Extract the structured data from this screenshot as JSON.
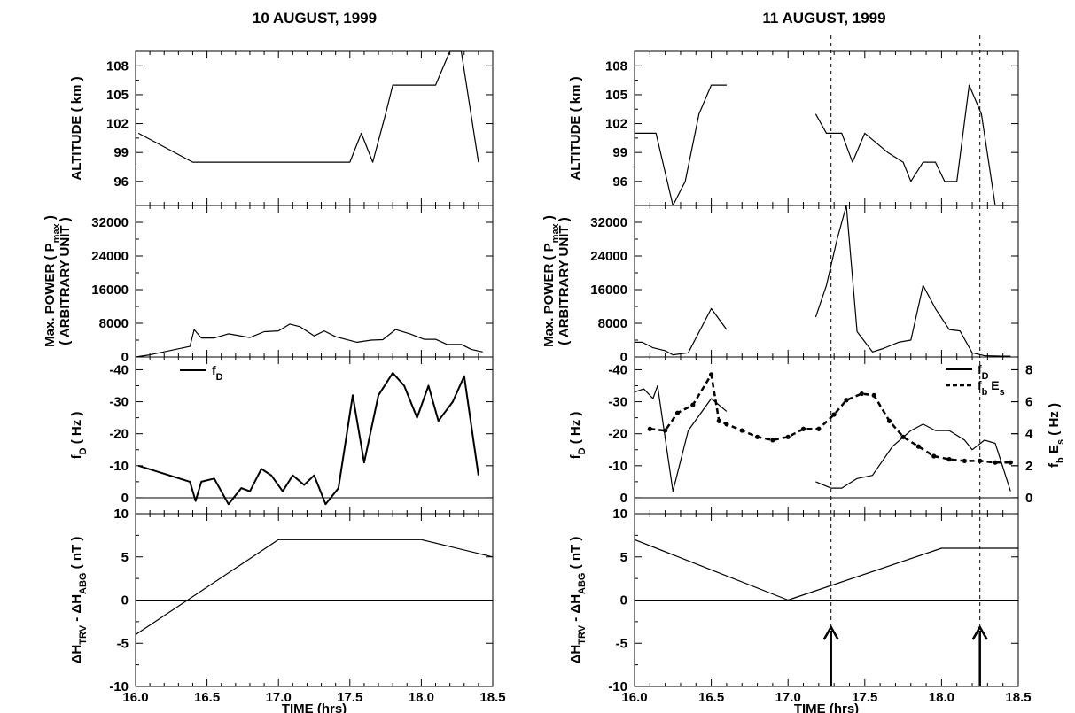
{
  "chart_data": [
    {
      "type": "line",
      "title": "10 AUGUST, 1999",
      "xlabel": "TIME (hrs)",
      "xlim": [
        16.0,
        18.5
      ],
      "xticks": [
        "16.0",
        "16.5",
        "17.0",
        "17.5",
        "18.0",
        "18.5"
      ],
      "panels": [
        {
          "id": "altitude",
          "ylabel": "ALTITUDE ( km )",
          "ylim": [
            93.5,
            109.5
          ],
          "yticks": [
            "96",
            "99",
            "102",
            "105",
            "108"
          ],
          "series": [
            {
              "style": "solid",
              "points": [
                [
                  16.02,
                  101
                ],
                [
                  16.4,
                  98
                ],
                [
                  16.6,
                  98
                ],
                [
                  17.0,
                  98
                ],
                [
                  17.5,
                  98
                ],
                [
                  17.58,
                  101
                ],
                [
                  17.66,
                  98
                ],
                [
                  17.75,
                  103
                ],
                [
                  17.8,
                  106
                ],
                [
                  18.1,
                  106
                ],
                [
                  18.2,
                  109.5
                ],
                [
                  18.28,
                  109.5
                ],
                [
                  18.4,
                  98
                ]
              ]
            }
          ]
        },
        {
          "id": "power",
          "ylabel": "Max. POWER ( P_max )",
          "ylabel2": "( ARBITRARY UNIT )",
          "ylabel_sub": "max",
          "ylim": [
            0,
            36000
          ],
          "yticks": [
            "0",
            "8000",
            "16000",
            "24000",
            "32000"
          ],
          "series": [
            {
              "style": "solid",
              "points": [
                [
                  16.0,
                  0
                ],
                [
                  16.1,
                  500
                ],
                [
                  16.38,
                  2500
                ],
                [
                  16.41,
                  6500
                ],
                [
                  16.46,
                  4500
                ],
                [
                  16.55,
                  4500
                ],
                [
                  16.65,
                  5500
                ],
                [
                  16.8,
                  4600
                ],
                [
                  16.9,
                  6000
                ],
                [
                  17.0,
                  6200
                ],
                [
                  17.08,
                  7800
                ],
                [
                  17.15,
                  7200
                ],
                [
                  17.25,
                  5000
                ],
                [
                  17.32,
                  6200
                ],
                [
                  17.4,
                  4800
                ],
                [
                  17.55,
                  3500
                ],
                [
                  17.65,
                  4000
                ],
                [
                  17.73,
                  4100
                ],
                [
                  17.82,
                  6500
                ],
                [
                  17.92,
                  5500
                ],
                [
                  18.02,
                  4200
                ],
                [
                  18.1,
                  4200
                ],
                [
                  18.18,
                  3000
                ],
                [
                  18.28,
                  3000
                ],
                [
                  18.35,
                  1800
                ],
                [
                  18.43,
                  1200
                ]
              ]
            }
          ]
        },
        {
          "id": "doppler",
          "ylabel": "f_D ( Hz )",
          "ylim": [
            5,
            -44
          ],
          "yticks": [
            "0",
            "-10",
            "-20",
            "-30",
            "-40"
          ],
          "legend": [
            {
              "label": "f_D",
              "style": "solid"
            }
          ],
          "series": [
            {
              "name": "f_D",
              "style": "thick",
              "points": [
                [
                  16.02,
                  -10
                ],
                [
                  16.38,
                  -5
                ],
                [
                  16.42,
                  1
                ],
                [
                  16.46,
                  -5
                ],
                [
                  16.55,
                  -6
                ],
                [
                  16.65,
                  2
                ],
                [
                  16.74,
                  -3
                ],
                [
                  16.8,
                  -2
                ],
                [
                  16.88,
                  -9
                ],
                [
                  16.95,
                  -7
                ],
                [
                  17.03,
                  -2
                ],
                [
                  17.1,
                  -7
                ],
                [
                  17.18,
                  -4
                ],
                [
                  17.25,
                  -7
                ],
                [
                  17.33,
                  2
                ],
                [
                  17.42,
                  -3
                ],
                [
                  17.52,
                  -32
                ],
                [
                  17.6,
                  -11
                ],
                [
                  17.7,
                  -32
                ],
                [
                  17.8,
                  -39
                ],
                [
                  17.88,
                  -35
                ],
                [
                  17.97,
                  -25
                ],
                [
                  18.05,
                  -35
                ],
                [
                  18.12,
                  -24
                ],
                [
                  18.22,
                  -30
                ],
                [
                  18.3,
                  -38
                ],
                [
                  18.4,
                  -7
                ]
              ]
            }
          ]
        },
        {
          "id": "deltaH",
          "ylabel": "ΔH_TRV - ΔH_ABG ( nT )",
          "ylim": [
            -10,
            10
          ],
          "yticks": [
            "-10",
            "-5",
            "0",
            "5",
            "10"
          ],
          "series": [
            {
              "style": "solid",
              "points": [
                [
                  16.0,
                  -4
                ],
                [
                  17.0,
                  7
                ],
                [
                  18.0,
                  7
                ],
                [
                  18.5,
                  5
                ]
              ]
            }
          ]
        }
      ]
    },
    {
      "type": "line",
      "title": "11 AUGUST, 1999",
      "xlabel": "TIME (hrs)",
      "xlim": [
        16.0,
        18.5
      ],
      "xticks": [
        "16.0",
        "16.5",
        "17.0",
        "17.5",
        "18.0",
        "18.5"
      ],
      "vlines": [
        17.28,
        18.25
      ],
      "arrows": [
        17.28,
        18.25
      ],
      "panels": [
        {
          "id": "altitude",
          "ylabel": "ALTITUDE ( km )",
          "ylim": [
            93.5,
            109.5
          ],
          "yticks": [
            "96",
            "99",
            "102",
            "105",
            "108"
          ],
          "series": [
            {
              "style": "solid",
              "points": [
                [
                  16.0,
                  101
                ],
                [
                  16.14,
                  101
                ],
                [
                  16.25,
                  93.2
                ],
                [
                  16.33,
                  96
                ],
                [
                  16.42,
                  103
                ],
                [
                  16.5,
                  106
                ],
                [
                  16.6,
                  106
                ]
              ]
            },
            {
              "style": "solid",
              "points": [
                [
                  17.18,
                  103
                ],
                [
                  17.25,
                  101
                ],
                [
                  17.35,
                  101
                ],
                [
                  17.42,
                  98
                ],
                [
                  17.5,
                  101
                ],
                [
                  17.65,
                  99
                ],
                [
                  17.75,
                  98
                ],
                [
                  17.8,
                  96
                ],
                [
                  17.88,
                  98
                ],
                [
                  17.96,
                  98
                ],
                [
                  18.02,
                  96
                ],
                [
                  18.1,
                  96
                ],
                [
                  18.18,
                  106
                ],
                [
                  18.26,
                  103
                ],
                [
                  18.35,
                  93.2
                ],
                [
                  18.45,
                  93.2
                ]
              ]
            }
          ]
        },
        {
          "id": "power",
          "ylabel": "Max. POWER ( P_max )",
          "ylabel2": "( ARBITRARY UNIT )",
          "ylabel_sub": "max",
          "ylim": [
            0,
            36000
          ],
          "yticks": [
            "0",
            "8000",
            "16000",
            "24000",
            "32000"
          ],
          "series": [
            {
              "style": "solid",
              "points": [
                [
                  16.0,
                  3500
                ],
                [
                  16.05,
                  3500
                ],
                [
                  16.12,
                  2200
                ],
                [
                  16.2,
                  1500
                ],
                [
                  16.25,
                  500
                ],
                [
                  16.35,
                  1000
                ],
                [
                  16.5,
                  11500
                ],
                [
                  16.6,
                  6500
                ]
              ]
            },
            {
              "style": "solid",
              "points": [
                [
                  17.18,
                  9500
                ],
                [
                  17.25,
                  17000
                ],
                [
                  17.32,
                  28000
                ],
                [
                  17.38,
                  36000
                ],
                [
                  17.45,
                  6000
                ],
                [
                  17.55,
                  1200
                ],
                [
                  17.62,
                  2000
                ],
                [
                  17.72,
                  3500
                ],
                [
                  17.8,
                  4000
                ],
                [
                  17.88,
                  17000
                ],
                [
                  17.96,
                  11500
                ],
                [
                  18.05,
                  6500
                ],
                [
                  18.12,
                  6200
                ],
                [
                  18.2,
                  1000
                ],
                [
                  18.28,
                  300
                ],
                [
                  18.4,
                  200
                ],
                [
                  18.45,
                  200
                ]
              ]
            }
          ]
        },
        {
          "id": "doppler",
          "ylabel": "f_D ( Hz )",
          "ylim": [
            5,
            -44
          ],
          "yticks": [
            "0",
            "-10",
            "-20",
            "-30",
            "-40"
          ],
          "ylabel_right": "f_b E_s ( Hz )",
          "ylim_right": [
            -1,
            8.8
          ],
          "yticks_right": [
            "0",
            "2",
            "4",
            "6",
            "8"
          ],
          "legend": [
            {
              "label": "f_D",
              "style": "solid"
            },
            {
              "label": "f_b E_s",
              "style": "dashed"
            }
          ],
          "series": [
            {
              "name": "f_D",
              "style": "solid",
              "points": [
                [
                  16.0,
                  -33
                ],
                [
                  16.06,
                  -34
                ],
                [
                  16.12,
                  -31
                ],
                [
                  16.15,
                  -35
                ],
                [
                  16.25,
                  -2
                ],
                [
                  16.35,
                  -21
                ],
                [
                  16.5,
                  -31
                ],
                [
                  16.6,
                  -27
                ]
              ]
            },
            {
              "name": "f_D",
              "style": "solid",
              "points": [
                [
                  17.18,
                  -5
                ],
                [
                  17.28,
                  -3
                ],
                [
                  17.35,
                  -3
                ],
                [
                  17.45,
                  -6
                ],
                [
                  17.55,
                  -7
                ],
                [
                  17.68,
                  -16
                ],
                [
                  17.8,
                  -21
                ],
                [
                  17.88,
                  -23
                ],
                [
                  17.96,
                  -21
                ],
                [
                  18.05,
                  -21
                ],
                [
                  18.15,
                  -18
                ],
                [
                  18.2,
                  -15
                ],
                [
                  18.28,
                  -18
                ],
                [
                  18.35,
                  -17
                ],
                [
                  18.45,
                  -2
                ]
              ]
            },
            {
              "name": "f_b E_s",
              "style": "dashed",
              "axis": "right",
              "points": [
                [
                  16.1,
                  4.3
                ],
                [
                  16.2,
                  4.2
                ],
                [
                  16.28,
                  5.3
                ],
                [
                  16.38,
                  5.8
                ],
                [
                  16.5,
                  7.7
                ],
                [
                  16.55,
                  4.8
                ],
                [
                  16.6,
                  4.6
                ],
                [
                  16.7,
                  4.2
                ],
                [
                  16.8,
                  3.8
                ],
                [
                  16.9,
                  3.6
                ],
                [
                  17.0,
                  3.8
                ],
                [
                  17.1,
                  4.3
                ],
                [
                  17.2,
                  4.3
                ],
                [
                  17.3,
                  5.2
                ],
                [
                  17.38,
                  6.1
                ],
                [
                  17.48,
                  6.5
                ],
                [
                  17.56,
                  6.4
                ],
                [
                  17.66,
                  4.8
                ],
                [
                  17.75,
                  3.8
                ],
                [
                  17.85,
                  3.2
                ],
                [
                  17.95,
                  2.6
                ],
                [
                  18.05,
                  2.4
                ],
                [
                  18.15,
                  2.3
                ],
                [
                  18.25,
                  2.3
                ],
                [
                  18.35,
                  2.2
                ],
                [
                  18.45,
                  2.2
                ]
              ]
            }
          ]
        },
        {
          "id": "deltaH",
          "ylabel": "ΔH_TRV - ΔH_ABG ( nT )",
          "ylim": [
            -10,
            10
          ],
          "yticks": [
            "-10",
            "-5",
            "0",
            "5",
            "10"
          ],
          "series": [
            {
              "style": "solid",
              "points": [
                [
                  16.0,
                  7
                ],
                [
                  17.0,
                  0
                ],
                [
                  18.0,
                  6
                ],
                [
                  18.5,
                  6
                ]
              ]
            }
          ]
        }
      ]
    }
  ]
}
